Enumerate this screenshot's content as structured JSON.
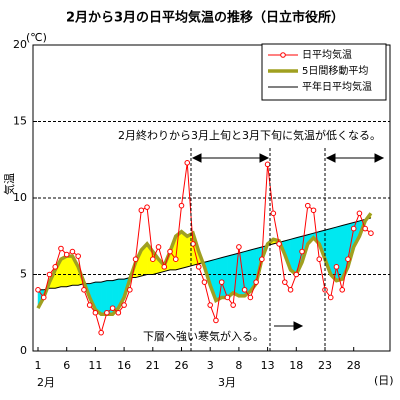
{
  "chart_data": {
    "type": "line",
    "title": "2月から3月の日平均気温の推移（日立市役所）",
    "y_label": "気温",
    "y_unit": "(℃)",
    "x_unit": "(日)",
    "month_labels": [
      "2月",
      "3月"
    ],
    "annotations": [
      "2月終わりから3月上旬と3月下旬に気温が低くなる。",
      "下層へ強い寒気が入る。"
    ],
    "categories": [
      "1",
      null,
      null,
      null,
      null,
      "6",
      null,
      null,
      null,
      null,
      "11",
      null,
      null,
      null,
      null,
      "16",
      null,
      null,
      null,
      null,
      "21",
      null,
      null,
      null,
      null,
      "26",
      null,
      null,
      null,
      null,
      "3",
      null,
      null,
      null,
      null,
      "8",
      null,
      null,
      null,
      null,
      "13",
      null,
      null,
      null,
      null,
      "18",
      null,
      null,
      null,
      null,
      "23",
      null,
      null,
      null,
      null,
      "28",
      null,
      null,
      null
    ],
    "series": [
      {
        "name": "日平均気温",
        "color": "#ff0000",
        "width": 1,
        "marker": true,
        "values": [
          4.0,
          3.5,
          5.0,
          5.5,
          6.7,
          6.3,
          6.5,
          6.2,
          4.0,
          3.0,
          2.5,
          1.2,
          2.5,
          2.8,
          2.5,
          3.0,
          4.0,
          6.0,
          9.2,
          9.4,
          6.0,
          6.8,
          5.5,
          6.5,
          6.0,
          9.5,
          12.3,
          7.0,
          5.5,
          4.5,
          3.0,
          2.0,
          4.5,
          3.5,
          3.0,
          6.8,
          4.0,
          3.5,
          4.5,
          6.0,
          12.2,
          9.0,
          7.0,
          4.5,
          4.0,
          5.0,
          6.5,
          9.5,
          9.2,
          6.0,
          4.0,
          3.5,
          5.5,
          4.0,
          6.0,
          8.0,
          9.0,
          8.0,
          7.7
        ]
      },
      {
        "name": "5日間移動平均",
        "color": "#a0a020",
        "width": 3.5,
        "marker": false,
        "values": [
          2.8,
          3.5,
          4.5,
          5.3,
          6.0,
          6.2,
          6.2,
          5.5,
          4.5,
          3.5,
          2.7,
          2.4,
          2.4,
          2.4,
          2.8,
          3.5,
          4.7,
          5.8,
          6.6,
          7.0,
          6.5,
          6.0,
          5.6,
          6.5,
          7.5,
          7.8,
          7.5,
          7.7,
          6.5,
          5.5,
          4.3,
          3.3,
          3.5,
          3.5,
          3.8,
          3.6,
          3.6,
          3.9,
          4.4,
          6.0,
          7.0,
          7.3,
          7.2,
          6.3,
          5.3,
          5.0,
          5.8,
          7.0,
          7.4,
          7.0,
          6.0,
          5.0,
          4.6,
          4.7,
          5.5,
          6.8,
          7.5,
          8.5,
          9.0
        ]
      },
      {
        "name": "平年日平均気温",
        "color": "#000000",
        "width": 1,
        "marker": false,
        "values": [
          4.0,
          4.0,
          4.1,
          4.1,
          4.2,
          4.2,
          4.3,
          4.3,
          4.4,
          4.4,
          4.5,
          4.5,
          4.6,
          4.6,
          4.7,
          4.7,
          4.8,
          4.8,
          4.9,
          5.0,
          5.0,
          5.1,
          5.2,
          5.3,
          5.3,
          5.4,
          5.5,
          5.6,
          5.7,
          5.8,
          5.9,
          6.0,
          6.1,
          6.2,
          6.3,
          6.4,
          6.5,
          6.6,
          6.7,
          6.8,
          6.9,
          7.0,
          7.1,
          7.2,
          7.3,
          7.4,
          7.5,
          7.6,
          7.7,
          7.8,
          7.9,
          8.0,
          8.1,
          8.2,
          8.3,
          8.4,
          8.5,
          8.6,
          8.7
        ]
      }
    ],
    "fill_between": {
      "above_color": "#ffff00",
      "below_color": "#00e8f0"
    },
    "ylim": [
      0,
      20
    ],
    "yticks": [
      0,
      5,
      10,
      15,
      20
    ],
    "grid": true
  }
}
